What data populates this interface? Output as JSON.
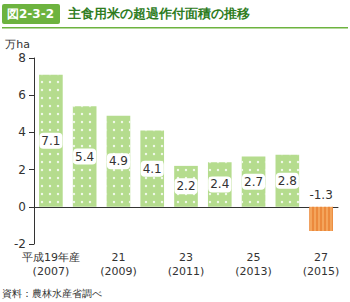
{
  "chart_data": {
    "type": "bar",
    "figure_label": "図2-3-2",
    "title": "主食用米の超過作付面積の推移",
    "y_label": "万ha",
    "source": "資料：農林水産省調べ",
    "categories": [
      "平成19年産\n(2007)",
      null,
      "21\n(2009)",
      null,
      "23\n(2011)",
      null,
      "25\n(2013)",
      null,
      "27\n(2015)"
    ],
    "values": [
      7.1,
      5.4,
      4.9,
      4.1,
      2.2,
      2.4,
      2.7,
      2.8,
      -1.3
    ],
    "colors": [
      "#b5dc8e",
      "#b5dc8e",
      "#b5dc8e",
      "#b5dc8e",
      "#b5dc8e",
      "#b5dc8e",
      "#b5dc8e",
      "#b5dc8e",
      "#f4a55c"
    ],
    "ylim": [
      -2,
      8
    ],
    "yticks": [
      -2,
      0,
      2,
      4,
      6,
      8
    ],
    "grid": false,
    "data_labels": true
  }
}
